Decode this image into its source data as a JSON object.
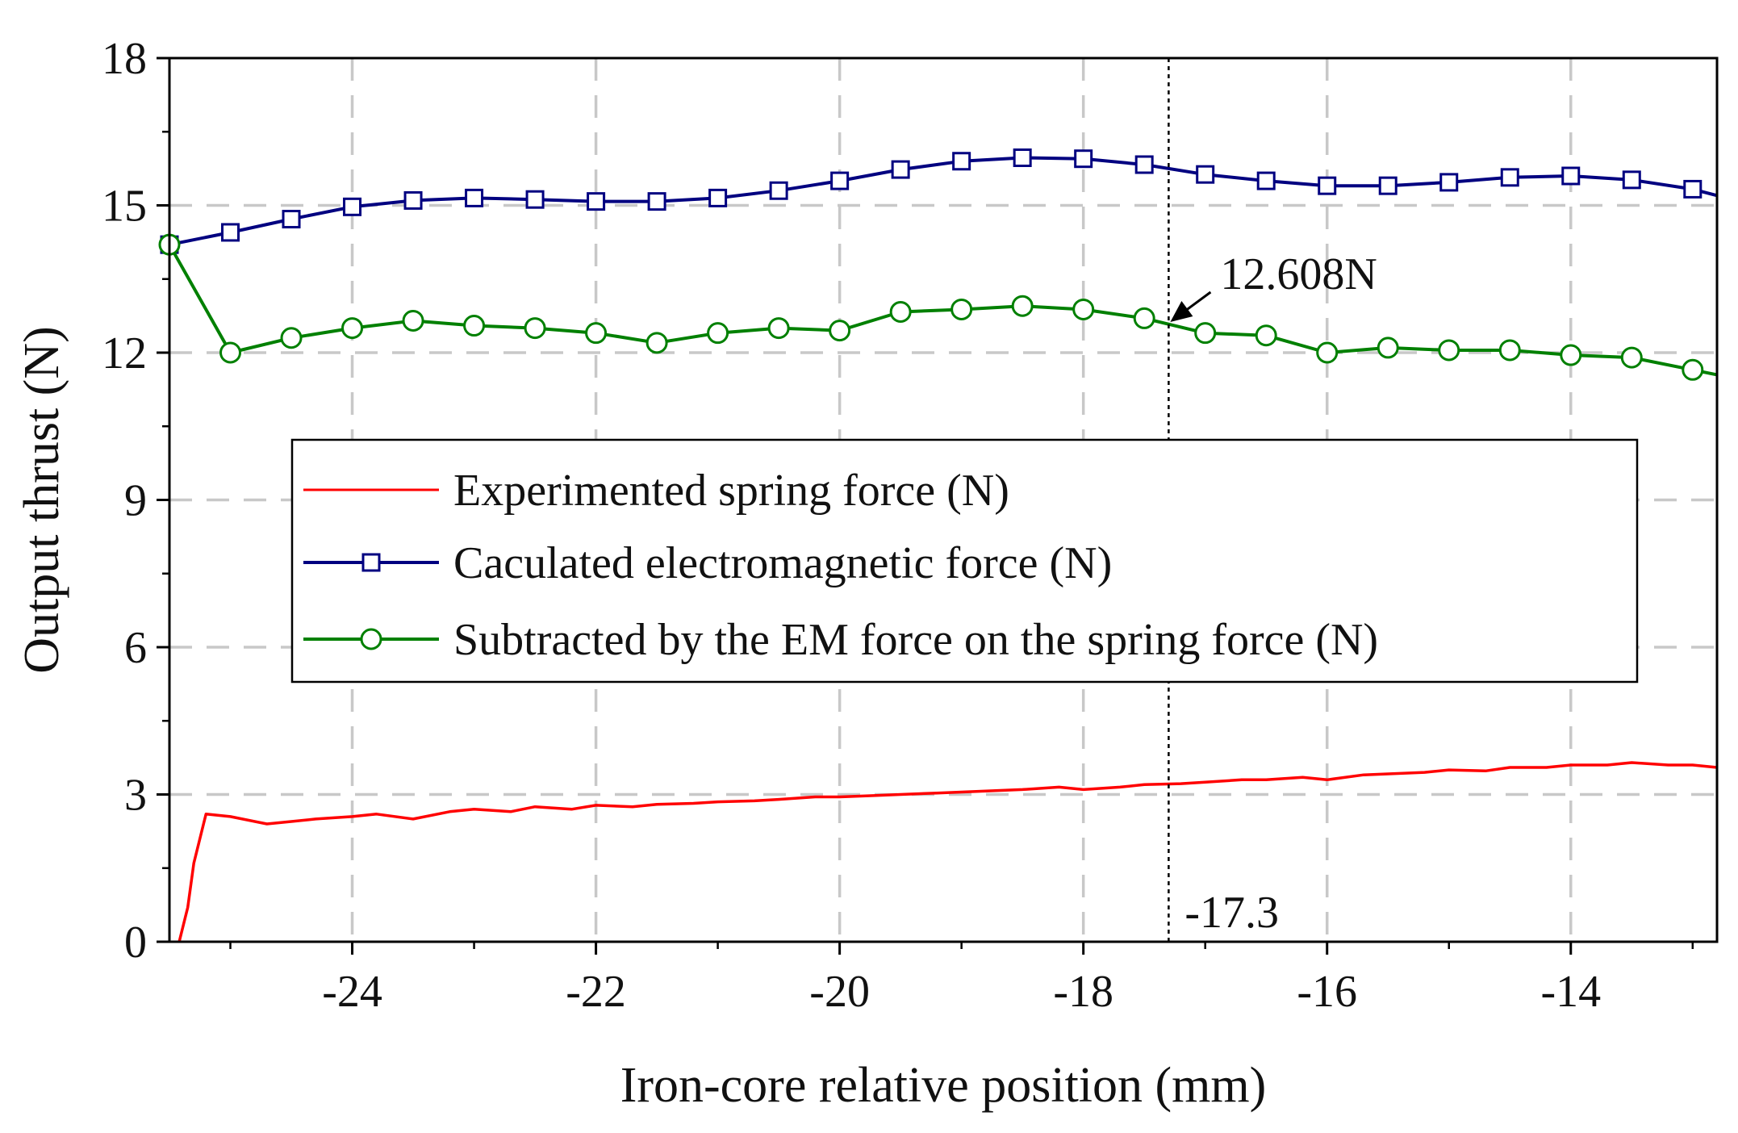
{
  "chart_data": {
    "type": "line",
    "title": "",
    "xlabel": "Iron-core relative position (mm)",
    "ylabel": "Output thrust (N)",
    "xlim": [
      -25.5,
      -12.8
    ],
    "ylim": [
      0,
      18
    ],
    "xticks": [
      -24,
      -22,
      -20,
      -18,
      -16,
      -14
    ],
    "yticks": [
      0,
      3,
      6,
      9,
      12,
      15,
      18
    ],
    "grid": true,
    "legend_position": "center-left",
    "colors": {
      "spring": "#ff0000",
      "em": "#000080",
      "subtracted": "#008000",
      "grid": "#c8c8c8",
      "axis": "#000000"
    },
    "series": [
      {
        "name": "Experimented spring force (N)",
        "style": "line",
        "marker": "none",
        "x": [
          -25.42,
          -25.35,
          -25.3,
          -25.2,
          -25.0,
          -24.7,
          -24.5,
          -24.3,
          -24.0,
          -23.8,
          -23.5,
          -23.2,
          -23.0,
          -22.7,
          -22.5,
          -22.2,
          -22.0,
          -21.7,
          -21.5,
          -21.2,
          -21.0,
          -20.7,
          -20.5,
          -20.2,
          -20.0,
          -19.7,
          -19.5,
          -19.2,
          -19.0,
          -18.7,
          -18.5,
          -18.2,
          -18.0,
          -17.7,
          -17.5,
          -17.2,
          -17.0,
          -16.7,
          -16.5,
          -16.2,
          -16.0,
          -15.7,
          -15.5,
          -15.2,
          -15.0,
          -14.7,
          -14.5,
          -14.2,
          -14.0,
          -13.7,
          -13.5,
          -13.2,
          -13.0,
          -12.8
        ],
        "values": [
          0.0,
          0.7,
          1.6,
          2.6,
          2.55,
          2.4,
          2.45,
          2.5,
          2.55,
          2.6,
          2.5,
          2.65,
          2.7,
          2.65,
          2.75,
          2.7,
          2.78,
          2.75,
          2.8,
          2.82,
          2.85,
          2.87,
          2.9,
          2.95,
          2.95,
          2.98,
          3.0,
          3.03,
          3.05,
          3.08,
          3.1,
          3.15,
          3.1,
          3.15,
          3.2,
          3.22,
          3.25,
          3.3,
          3.3,
          3.35,
          3.3,
          3.4,
          3.42,
          3.45,
          3.5,
          3.48,
          3.55,
          3.55,
          3.6,
          3.6,
          3.65,
          3.6,
          3.6,
          3.55
        ]
      },
      {
        "name": "Caculated electromagnetic force (N)",
        "style": "line+marker",
        "marker": "square",
        "x": [
          -25.5,
          -25.0,
          -24.5,
          -24.0,
          -23.5,
          -23.0,
          -22.5,
          -22.0,
          -21.5,
          -21.0,
          -20.5,
          -20.0,
          -19.5,
          -19.0,
          -18.5,
          -18.0,
          -17.5,
          -17.0,
          -16.5,
          -16.0,
          -15.5,
          -15.0,
          -14.5,
          -14.0,
          -13.5,
          -13.0
        ],
        "values": [
          14.2,
          14.45,
          14.72,
          14.97,
          15.1,
          15.15,
          15.12,
          15.08,
          15.08,
          15.15,
          15.3,
          15.5,
          15.73,
          15.9,
          15.97,
          15.95,
          15.83,
          15.63,
          15.5,
          15.4,
          15.4,
          15.47,
          15.57,
          15.6,
          15.52,
          15.33
        ],
        "line_end": {
          "x": -12.8,
          "value": 15.2
        }
      },
      {
        "name": "Subtracted by the EM force on the spring force (N)",
        "style": "line+marker",
        "marker": "circle",
        "x": [
          -25.5,
          -25.0,
          -24.5,
          -24.0,
          -23.5,
          -23.0,
          -22.5,
          -22.0,
          -21.5,
          -21.0,
          -20.5,
          -20.0,
          -19.5,
          -19.0,
          -18.5,
          -18.0,
          -17.5,
          -17.0,
          -16.5,
          -16.0,
          -15.5,
          -15.0,
          -14.5,
          -14.0,
          -13.5,
          -13.0
        ],
        "values": [
          14.2,
          12.0,
          12.3,
          12.5,
          12.65,
          12.55,
          12.5,
          12.4,
          12.2,
          12.4,
          12.5,
          12.45,
          12.83,
          12.88,
          12.95,
          12.88,
          12.7,
          12.4,
          12.35,
          12.0,
          12.1,
          12.05,
          12.05,
          11.95,
          11.9,
          11.65
        ],
        "line_end": {
          "x": -12.8,
          "value": 11.55
        }
      }
    ],
    "annotations": {
      "vline_x": -17.3,
      "vline_label": "-17.3",
      "point_label": "12.608N",
      "point": {
        "x": -17.3,
        "value": 12.608
      }
    }
  }
}
